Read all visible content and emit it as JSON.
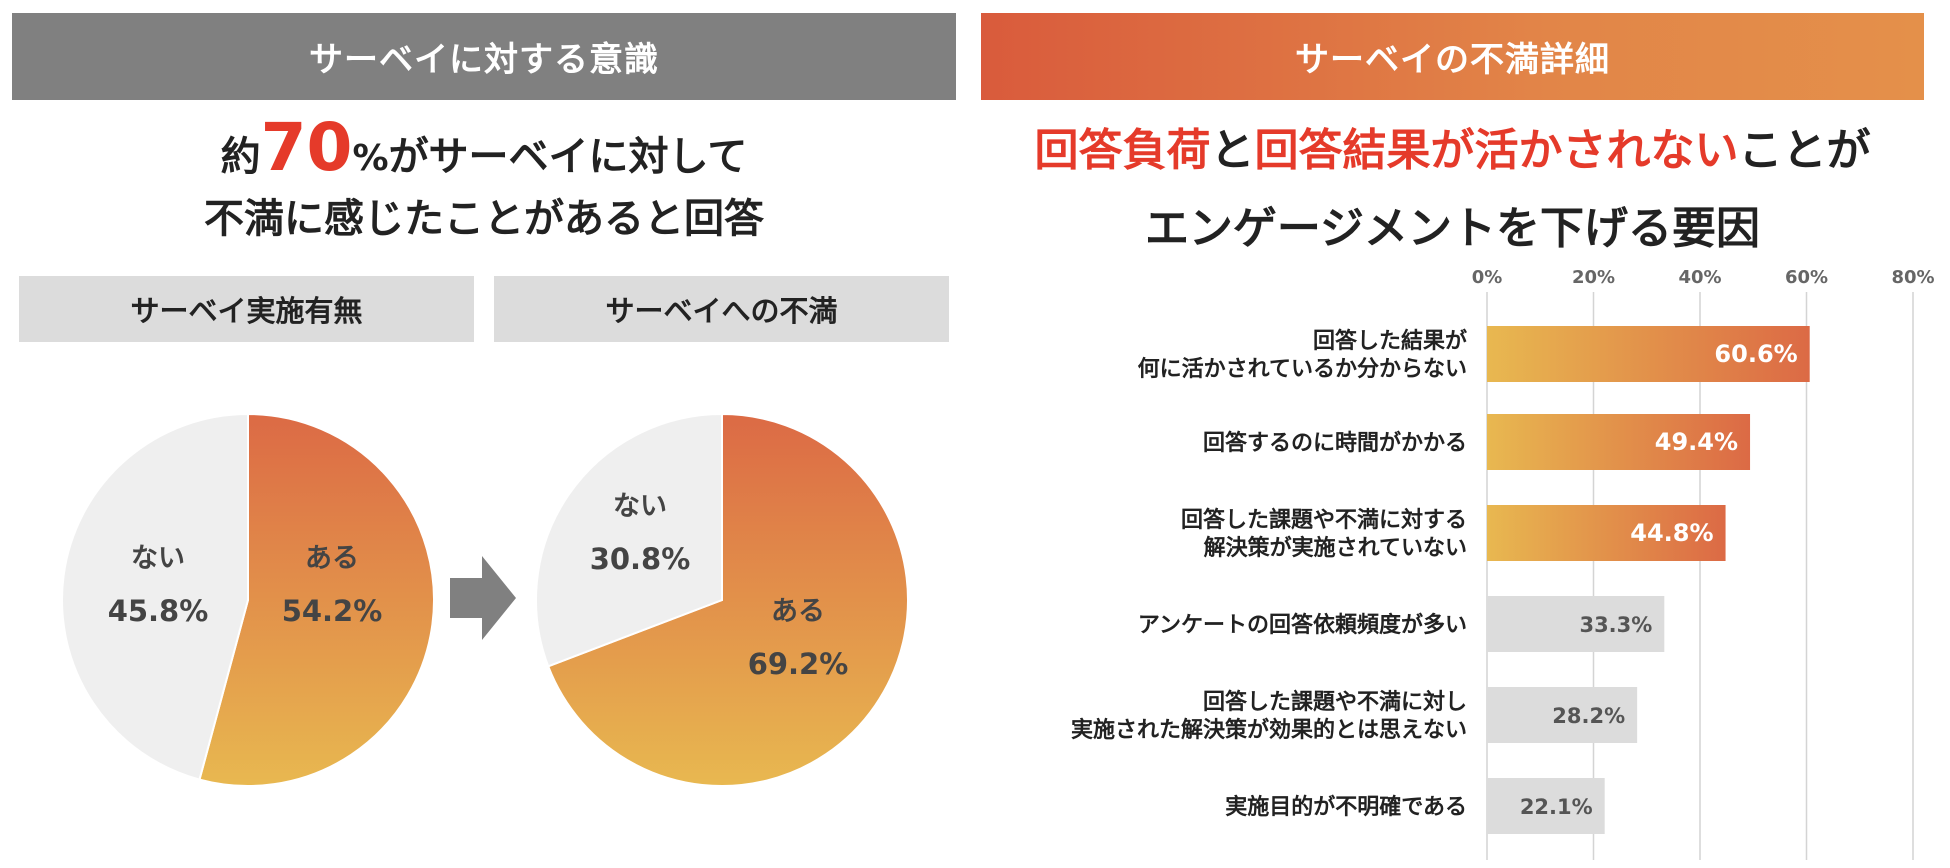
{
  "left": {
    "banner": "サーベイに対する意識",
    "headline": {
      "line1_prefix": "約",
      "line1_big": "70",
      "line1_pct": "%",
      "line1_suffix": "がサーベイに対して",
      "line2": "不満に感じたことがあると回答"
    },
    "subheads": [
      "サーベイ実施有無",
      "サーベイへの不満"
    ]
  },
  "right": {
    "banner": "サーベイの不満詳細",
    "headline": {
      "red1": "回答負荷",
      "mid": "と",
      "red2": "回答結果が活かされない",
      "tail": "ことが",
      "line2": "エンゲージメントを下げる要因"
    }
  },
  "colors": {
    "orange_top": "#dc6a45",
    "orange_bottom": "#e8b850",
    "pie_gray": "#efefef",
    "bar_gray": "#dcdcdc",
    "accent_red": "#e53a2a"
  },
  "chart_data": [
    {
      "type": "pie",
      "title": "サーベイ実施有無",
      "slices": [
        {
          "label": "ある",
          "value": 54.2,
          "display": "54.2%"
        },
        {
          "label": "ない",
          "value": 45.8,
          "display": "45.8%"
        }
      ]
    },
    {
      "type": "pie",
      "title": "サーベイへの不満",
      "slices": [
        {
          "label": "ある",
          "value": 69.2,
          "display": "69.2%"
        },
        {
          "label": "ない",
          "value": 30.8,
          "display": "30.8%"
        }
      ]
    },
    {
      "type": "bar",
      "orientation": "horizontal",
      "title": "",
      "xlim": [
        0,
        80
      ],
      "ticks": [
        0,
        20,
        40,
        60,
        80
      ],
      "tick_labels": [
        "0%",
        "20%",
        "40%",
        "60%",
        "80%"
      ],
      "grid": true,
      "categories": [
        [
          "回答した結果が",
          "何に活かされているか分からない"
        ],
        [
          "回答するのに時間がかかる"
        ],
        [
          "回答した課題や不満に対する",
          "解決策が実施されていない"
        ],
        [
          "アンケートの回答依頼頻度が多い"
        ],
        [
          "回答した課題や不満に対し",
          "実施された解決策が効果的とは思えない"
        ],
        [
          "実施目的が不明確である"
        ]
      ],
      "values": [
        60.6,
        49.4,
        44.8,
        33.3,
        28.2,
        22.1
      ],
      "value_labels": [
        "60.6%",
        "49.4%",
        "44.8%",
        "33.3%",
        "28.2%",
        "22.1%"
      ],
      "highlighted": [
        true,
        true,
        true,
        false,
        false,
        false
      ]
    }
  ]
}
